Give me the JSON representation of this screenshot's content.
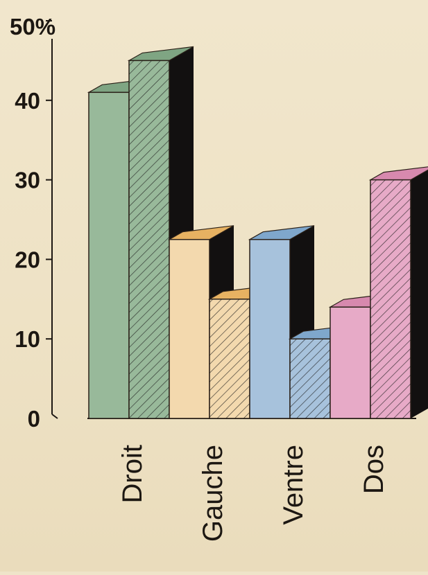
{
  "chart_data": {
    "type": "bar",
    "title": "",
    "xlabel": "",
    "ylabel": "",
    "ylim": [
      0,
      50
    ],
    "y_ticks": [
      0,
      10,
      20,
      30,
      40,
      50
    ],
    "y_tick_labels": [
      "0",
      "10",
      "20",
      "30",
      "40",
      "50%"
    ],
    "categories": [
      "Droit",
      "Gauche",
      "Ventre",
      "Dos"
    ],
    "series": [
      {
        "style": "solid",
        "values": [
          41,
          22.5,
          22.5,
          14
        ]
      },
      {
        "style": "hatched",
        "values": [
          45,
          15,
          10,
          30
        ]
      }
    ],
    "category_colors": {
      "Droit": {
        "front": "#98b99a",
        "top": "#7fa583"
      },
      "Gauche": {
        "front": "#f3d9ae",
        "top": "#e7b262"
      },
      "Ventre": {
        "front": "#a7c2dc",
        "top": "#7fa7cc"
      },
      "Dos": {
        "front": "#e7aac7",
        "top": "#d789ae"
      }
    },
    "side_color": "#121010",
    "grid": false,
    "legend": "none"
  }
}
